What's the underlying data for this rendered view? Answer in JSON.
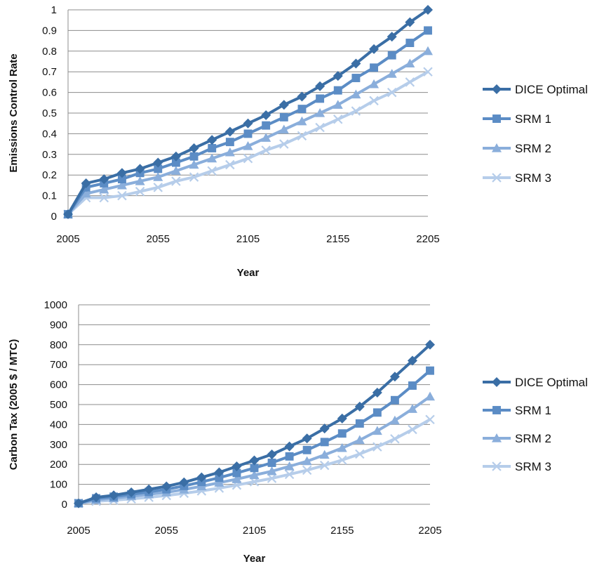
{
  "chart_data": [
    {
      "type": "line",
      "xlabel": "Year",
      "ylabel": "Emissions Control Rate",
      "xlim": [
        2005,
        2205
      ],
      "ylim": [
        0,
        1
      ],
      "x_ticks": [
        2005,
        2055,
        2105,
        2155,
        2205
      ],
      "y_ticks": [
        0,
        0.1,
        0.2,
        0.3,
        0.4,
        0.5,
        0.6,
        0.7,
        0.8,
        0.9,
        1
      ],
      "grid": "horizontal",
      "legend_position": "right",
      "x": [
        2005,
        2015,
        2025,
        2035,
        2045,
        2055,
        2065,
        2075,
        2085,
        2095,
        2105,
        2115,
        2125,
        2135,
        2145,
        2155,
        2165,
        2175,
        2185,
        2195,
        2205
      ],
      "series": [
        {
          "name": "DICE Optimal",
          "marker": "diamond",
          "color": "#3a6ea5",
          "values": [
            0.01,
            0.16,
            0.18,
            0.21,
            0.23,
            0.26,
            0.29,
            0.33,
            0.37,
            0.41,
            0.45,
            0.49,
            0.54,
            0.58,
            0.63,
            0.68,
            0.74,
            0.81,
            0.87,
            0.94,
            1.0
          ]
        },
        {
          "name": "SRM 1",
          "marker": "square",
          "color": "#5b8cc5",
          "values": [
            0.01,
            0.14,
            0.16,
            0.18,
            0.21,
            0.23,
            0.26,
            0.29,
            0.33,
            0.36,
            0.4,
            0.44,
            0.48,
            0.52,
            0.57,
            0.61,
            0.67,
            0.72,
            0.78,
            0.84,
            0.9
          ]
        },
        {
          "name": "SRM 2",
          "marker": "triangle",
          "color": "#8aaedb",
          "values": [
            0.01,
            0.11,
            0.13,
            0.15,
            0.17,
            0.19,
            0.22,
            0.25,
            0.28,
            0.31,
            0.34,
            0.38,
            0.42,
            0.46,
            0.5,
            0.54,
            0.59,
            0.64,
            0.69,
            0.74,
            0.8
          ]
        },
        {
          "name": "SRM 3",
          "marker": "x",
          "color": "#b6cdea",
          "values": [
            0.01,
            0.09,
            0.09,
            0.1,
            0.12,
            0.14,
            0.17,
            0.19,
            0.22,
            0.25,
            0.28,
            0.32,
            0.35,
            0.39,
            0.43,
            0.47,
            0.51,
            0.56,
            0.6,
            0.65,
            0.7
          ]
        }
      ]
    },
    {
      "type": "line",
      "xlabel": "Year",
      "ylabel": "Carbon Tax (2005 $ / MTC)",
      "xlim": [
        2005,
        2205
      ],
      "ylim": [
        0,
        1000
      ],
      "x_ticks": [
        2005,
        2055,
        2105,
        2155,
        2205
      ],
      "y_ticks": [
        0,
        100,
        200,
        300,
        400,
        500,
        600,
        700,
        800,
        900,
        1000
      ],
      "grid": "horizontal",
      "legend_position": "right",
      "x": [
        2005,
        2015,
        2025,
        2035,
        2045,
        2055,
        2065,
        2075,
        2085,
        2095,
        2105,
        2115,
        2125,
        2135,
        2145,
        2155,
        2165,
        2175,
        2185,
        2195,
        2205
      ],
      "series": [
        {
          "name": "DICE Optimal",
          "marker": "diamond",
          "color": "#3a6ea5",
          "values": [
            5,
            35,
            45,
            60,
            75,
            90,
            110,
            135,
            160,
            190,
            220,
            250,
            290,
            330,
            380,
            430,
            490,
            560,
            640,
            720,
            800
          ]
        },
        {
          "name": "SRM 1",
          "marker": "square",
          "color": "#5b8cc5",
          "values": [
            5,
            30,
            38,
            50,
            62,
            75,
            92,
            112,
            133,
            157,
            182,
            208,
            240,
            272,
            312,
            355,
            405,
            460,
            522,
            595,
            670
          ]
        },
        {
          "name": "SRM 2",
          "marker": "triangle",
          "color": "#8aaedb",
          "values": [
            5,
            22,
            30,
            40,
            50,
            60,
            74,
            90,
            108,
            126,
            146,
            166,
            190,
            216,
            248,
            282,
            322,
            368,
            420,
            478,
            540
          ]
        },
        {
          "name": "SRM 3",
          "marker": "x",
          "color": "#b6cdea",
          "values": [
            5,
            15,
            20,
            27,
            35,
            44,
            55,
            67,
            81,
            96,
            113,
            130,
            150,
            171,
            195,
            222,
            252,
            288,
            328,
            375,
            425
          ]
        }
      ]
    }
  ]
}
